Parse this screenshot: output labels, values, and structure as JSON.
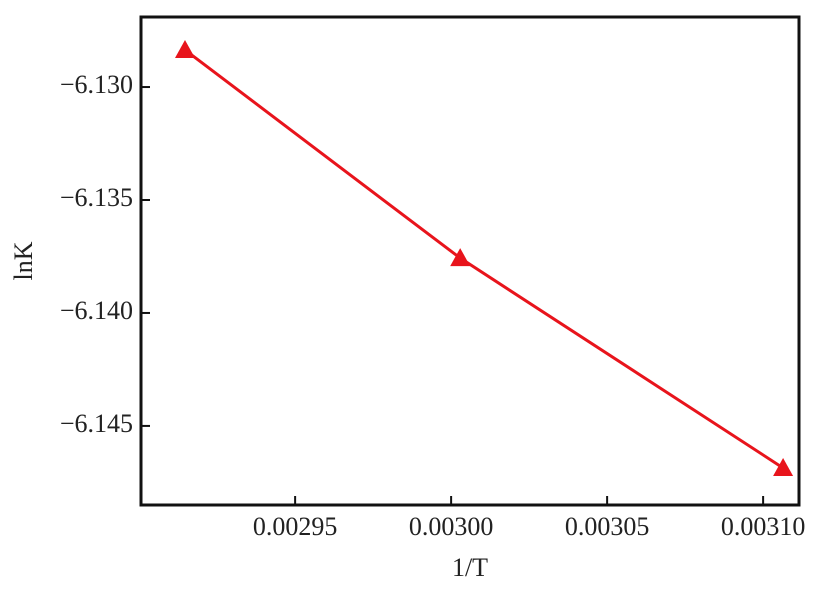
{
  "chart_data": {
    "type": "line",
    "x_label": "1/T",
    "y_label": "lnK",
    "x": [
      0.0029147,
      0.0030029,
      0.0031064
    ],
    "series": [
      {
        "name": "lnK",
        "color": "#e8141c",
        "values": [
          -6.12836,
          -6.13757,
          -6.14686
        ]
      }
    ],
    "xlim": [
      0.0029006,
      0.0031115
    ],
    "ylim": [
      -6.1485,
      -6.1269
    ],
    "xticks": [
      0.00295,
      {
        "value": 0.003,
        "label": "0.00300"
      },
      0.00305,
      {
        "value": 0.0031,
        "label": "0.00310"
      }
    ],
    "yticks": [
      {
        "value": -6.145,
        "label": "−6.145"
      },
      {
        "value": -6.14,
        "label": "−6.140"
      },
      {
        "value": -6.135,
        "label": "−6.135"
      },
      {
        "value": -6.13,
        "label": "−6.130"
      }
    ]
  }
}
